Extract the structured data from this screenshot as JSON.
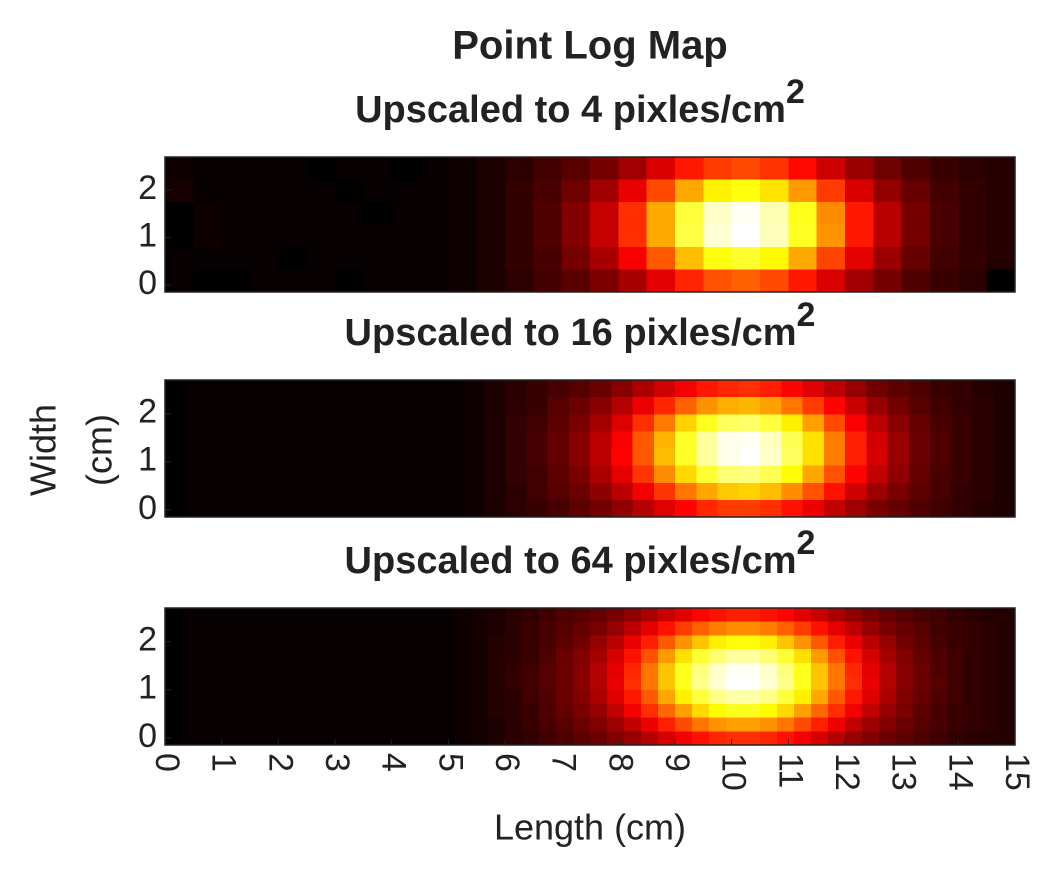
{
  "figure": {
    "title": "Point Log Map",
    "y_label": [
      "Width",
      "(cm)"
    ],
    "x_label": "Length (cm)"
  },
  "chart_data": [
    {
      "type": "heatmap",
      "title": "Upscaled to 4 pixles/cm",
      "title_superscript": "2",
      "colormap": "hot",
      "xlim": [
        0,
        15
      ],
      "ylim": [
        -0.15,
        2.7
      ],
      "yticks": [
        0,
        1,
        2
      ],
      "z": [
        [
          6,
          5,
          5,
          5,
          5,
          4,
          5,
          5,
          4,
          5,
          6,
          8,
          10,
          13,
          16,
          20,
          26,
          34,
          42,
          47,
          49,
          46,
          40,
          32,
          25,
          19,
          15,
          12,
          10,
          9
        ],
        [
          7,
          5,
          5,
          5,
          5,
          5,
          4,
          5,
          5,
          5,
          6,
          8,
          11,
          14,
          19,
          26,
          36,
          49,
          62,
          72,
          75,
          70,
          60,
          47,
          34,
          24,
          18,
          13,
          11,
          9
        ],
        [
          4,
          6,
          5,
          5,
          5,
          5,
          5,
          4,
          5,
          5,
          6,
          8,
          11,
          15,
          22,
          31,
          45,
          62,
          79,
          92,
          96,
          90,
          76,
          58,
          42,
          29,
          20,
          14,
          11,
          9
        ],
        [
          4,
          6,
          5,
          5,
          5,
          5,
          5,
          5,
          5,
          5,
          6,
          8,
          11,
          15,
          22,
          31,
          45,
          62,
          80,
          93,
          97,
          91,
          77,
          59,
          42,
          29,
          20,
          14,
          11,
          9
        ],
        [
          5,
          5,
          5,
          5,
          4,
          5,
          5,
          5,
          5,
          5,
          6,
          8,
          11,
          14,
          20,
          27,
          38,
          51,
          65,
          75,
          78,
          73,
          62,
          48,
          35,
          25,
          18,
          13,
          11,
          9
        ],
        [
          5,
          4,
          4,
          5,
          5,
          5,
          4,
          5,
          5,
          5,
          6,
          8,
          10,
          13,
          16,
          21,
          27,
          35,
          44,
          50,
          52,
          49,
          42,
          34,
          26,
          20,
          15,
          12,
          10,
          4
        ]
      ]
    },
    {
      "type": "heatmap",
      "title": "Upscaled to 16 pixles/cm",
      "title_superscript": "2",
      "colormap": "hot",
      "xlim": [
        0,
        15
      ],
      "ylim": [
        -0.15,
        2.7
      ],
      "yticks": [
        0,
        1,
        2
      ],
      "z": [
        [
          4,
          5,
          5,
          5,
          5,
          5,
          5,
          5,
          5,
          5,
          5,
          5,
          5,
          5,
          6,
          8,
          10,
          12,
          14,
          16,
          19,
          23,
          28,
          33,
          38,
          43,
          45,
          46,
          44,
          40,
          35,
          30,
          25,
          20,
          17,
          15,
          12,
          11,
          9,
          8
        ],
        [
          4,
          5,
          5,
          5,
          5,
          5,
          5,
          5,
          5,
          5,
          5,
          5,
          5,
          5,
          6,
          8,
          10,
          12,
          16,
          19,
          23,
          29,
          37,
          45,
          53,
          60,
          64,
          65,
          62,
          56,
          48,
          40,
          32,
          25,
          20,
          16,
          13,
          11,
          10,
          8
        ],
        [
          4,
          5,
          5,
          5,
          5,
          5,
          5,
          5,
          5,
          5,
          5,
          5,
          5,
          5,
          6,
          8,
          11,
          13,
          17,
          21,
          27,
          35,
          46,
          57,
          69,
          78,
          84,
          85,
          81,
          73,
          62,
          50,
          39,
          30,
          23,
          18,
          14,
          12,
          10,
          8
        ],
        [
          4,
          5,
          5,
          5,
          5,
          5,
          5,
          5,
          5,
          5,
          5,
          5,
          5,
          5,
          6,
          8,
          11,
          14,
          18,
          23,
          30,
          39,
          52,
          65,
          79,
          90,
          97,
          98,
          93,
          83,
          71,
          57,
          44,
          33,
          25,
          19,
          15,
          12,
          10,
          8
        ],
        [
          4,
          5,
          5,
          5,
          5,
          5,
          5,
          5,
          5,
          5,
          5,
          5,
          5,
          5,
          6,
          8,
          11,
          14,
          18,
          23,
          30,
          40,
          52,
          66,
          79,
          90,
          97,
          99,
          94,
          84,
          71,
          57,
          44,
          34,
          25,
          19,
          15,
          12,
          10,
          8
        ],
        [
          4,
          5,
          5,
          5,
          5,
          5,
          5,
          5,
          5,
          5,
          5,
          5,
          5,
          5,
          6,
          8,
          11,
          13,
          17,
          21,
          28,
          36,
          47,
          59,
          70,
          80,
          86,
          87,
          83,
          75,
          63,
          51,
          40,
          31,
          24,
          18,
          14,
          12,
          10,
          8
        ],
        [
          4,
          5,
          5,
          5,
          5,
          5,
          5,
          5,
          5,
          5,
          5,
          5,
          5,
          5,
          6,
          8,
          10,
          13,
          16,
          19,
          24,
          30,
          38,
          47,
          56,
          63,
          68,
          69,
          66,
          59,
          51,
          42,
          33,
          26,
          21,
          17,
          14,
          11,
          10,
          8
        ],
        [
          4,
          5,
          5,
          5,
          5,
          5,
          5,
          5,
          5,
          5,
          5,
          5,
          5,
          5,
          6,
          8,
          10,
          12,
          14,
          17,
          20,
          24,
          29,
          35,
          40,
          45,
          48,
          48,
          46,
          42,
          37,
          31,
          26,
          21,
          18,
          15,
          13,
          11,
          9,
          8
        ]
      ]
    },
    {
      "type": "heatmap",
      "title": "Upscaled to 64 pixles/cm",
      "title_superscript": "2",
      "colormap": "hot",
      "xlim": [
        0,
        15
      ],
      "ylim": [
        -0.15,
        2.7
      ],
      "yticks": [
        0,
        1,
        2
      ],
      "xticks": [
        0,
        1,
        2,
        3,
        4,
        5,
        6,
        7,
        8,
        9,
        10,
        11,
        12,
        13,
        14,
        15
      ],
      "z": [
        [
          4,
          5,
          5,
          5,
          5,
          5,
          5,
          5,
          5,
          5,
          5,
          5,
          5,
          5,
          5,
          5,
          5,
          6,
          7,
          8,
          10,
          11,
          13,
          15,
          16,
          18,
          21,
          24,
          28,
          32,
          36,
          40,
          42,
          44,
          44,
          42,
          40,
          36,
          32,
          28,
          24,
          21,
          18,
          16,
          14,
          13,
          11,
          10,
          9,
          9
        ],
        [
          4,
          5,
          5,
          5,
          5,
          5,
          5,
          5,
          5,
          5,
          5,
          5,
          5,
          5,
          5,
          5,
          5,
          6,
          7,
          8,
          10,
          12,
          14,
          16,
          18,
          21,
          25,
          30,
          36,
          42,
          48,
          53,
          57,
          59,
          59,
          57,
          53,
          48,
          42,
          36,
          30,
          25,
          21,
          18,
          16,
          13,
          12,
          11,
          10,
          9
        ],
        [
          4,
          5,
          5,
          5,
          5,
          5,
          5,
          5,
          5,
          5,
          5,
          5,
          5,
          5,
          5,
          5,
          5,
          6,
          7,
          9,
          10,
          12,
          14,
          17,
          20,
          25,
          30,
          37,
          44,
          52,
          60,
          67,
          73,
          75,
          75,
          73,
          67,
          60,
          52,
          44,
          37,
          30,
          25,
          20,
          17,
          14,
          12,
          11,
          10,
          9
        ],
        [
          4,
          5,
          5,
          5,
          5,
          5,
          5,
          5,
          5,
          5,
          5,
          5,
          5,
          5,
          5,
          5,
          5,
          6,
          7,
          9,
          10,
          12,
          15,
          19,
          22,
          27,
          34,
          42,
          51,
          61,
          71,
          80,
          86,
          90,
          90,
          86,
          80,
          71,
          61,
          51,
          42,
          34,
          27,
          22,
          18,
          15,
          13,
          11,
          10,
          9
        ],
        [
          4,
          5,
          5,
          5,
          5,
          5,
          5,
          5,
          5,
          5,
          5,
          5,
          5,
          5,
          5,
          5,
          5,
          6,
          7,
          9,
          11,
          13,
          16,
          19,
          23,
          29,
          36,
          45,
          56,
          67,
          78,
          87,
          94,
          98,
          98,
          94,
          87,
          78,
          67,
          56,
          45,
          36,
          29,
          23,
          19,
          15,
          13,
          11,
          10,
          9
        ],
        [
          4,
          5,
          5,
          5,
          5,
          5,
          5,
          5,
          5,
          5,
          5,
          5,
          5,
          5,
          5,
          5,
          5,
          6,
          7,
          9,
          11,
          13,
          16,
          19,
          23,
          29,
          37,
          46,
          56,
          67,
          78,
          88,
          95,
          99,
          99,
          95,
          88,
          78,
          67,
          56,
          46,
          37,
          29,
          23,
          19,
          16,
          13,
          11,
          10,
          9
        ],
        [
          4,
          5,
          5,
          5,
          5,
          5,
          5,
          5,
          5,
          5,
          5,
          5,
          5,
          5,
          5,
          5,
          5,
          6,
          7,
          9,
          10,
          13,
          15,
          19,
          22,
          28,
          35,
          43,
          52,
          63,
          73,
          81,
          88,
          91,
          91,
          88,
          81,
          73,
          63,
          52,
          43,
          35,
          28,
          22,
          18,
          15,
          13,
          11,
          10,
          9
        ],
        [
          4,
          5,
          5,
          5,
          5,
          5,
          5,
          5,
          5,
          5,
          5,
          5,
          5,
          5,
          5,
          5,
          5,
          6,
          7,
          9,
          10,
          12,
          15,
          18,
          21,
          25,
          31,
          38,
          46,
          54,
          62,
          70,
          75,
          78,
          78,
          75,
          70,
          62,
          54,
          46,
          38,
          31,
          25,
          21,
          17,
          14,
          12,
          11,
          10,
          9
        ],
        [
          4,
          5,
          5,
          5,
          5,
          5,
          5,
          5,
          5,
          5,
          5,
          5,
          5,
          5,
          5,
          5,
          5,
          6,
          7,
          8,
          10,
          12,
          14,
          16,
          19,
          22,
          26,
          31,
          37,
          44,
          50,
          56,
          60,
          62,
          62,
          60,
          56,
          50,
          44,
          37,
          31,
          26,
          22,
          19,
          16,
          14,
          12,
          11,
          10,
          9
        ],
        [
          4,
          5,
          5,
          5,
          5,
          5,
          5,
          5,
          5,
          5,
          5,
          5,
          5,
          5,
          5,
          5,
          5,
          6,
          7,
          8,
          10,
          11,
          13,
          15,
          17,
          19,
          22,
          25,
          29,
          34,
          38,
          42,
          45,
          46,
          46,
          45,
          42,
          38,
          34,
          29,
          25,
          22,
          19,
          17,
          15,
          13,
          11,
          10,
          9,
          9
        ]
      ]
    }
  ]
}
